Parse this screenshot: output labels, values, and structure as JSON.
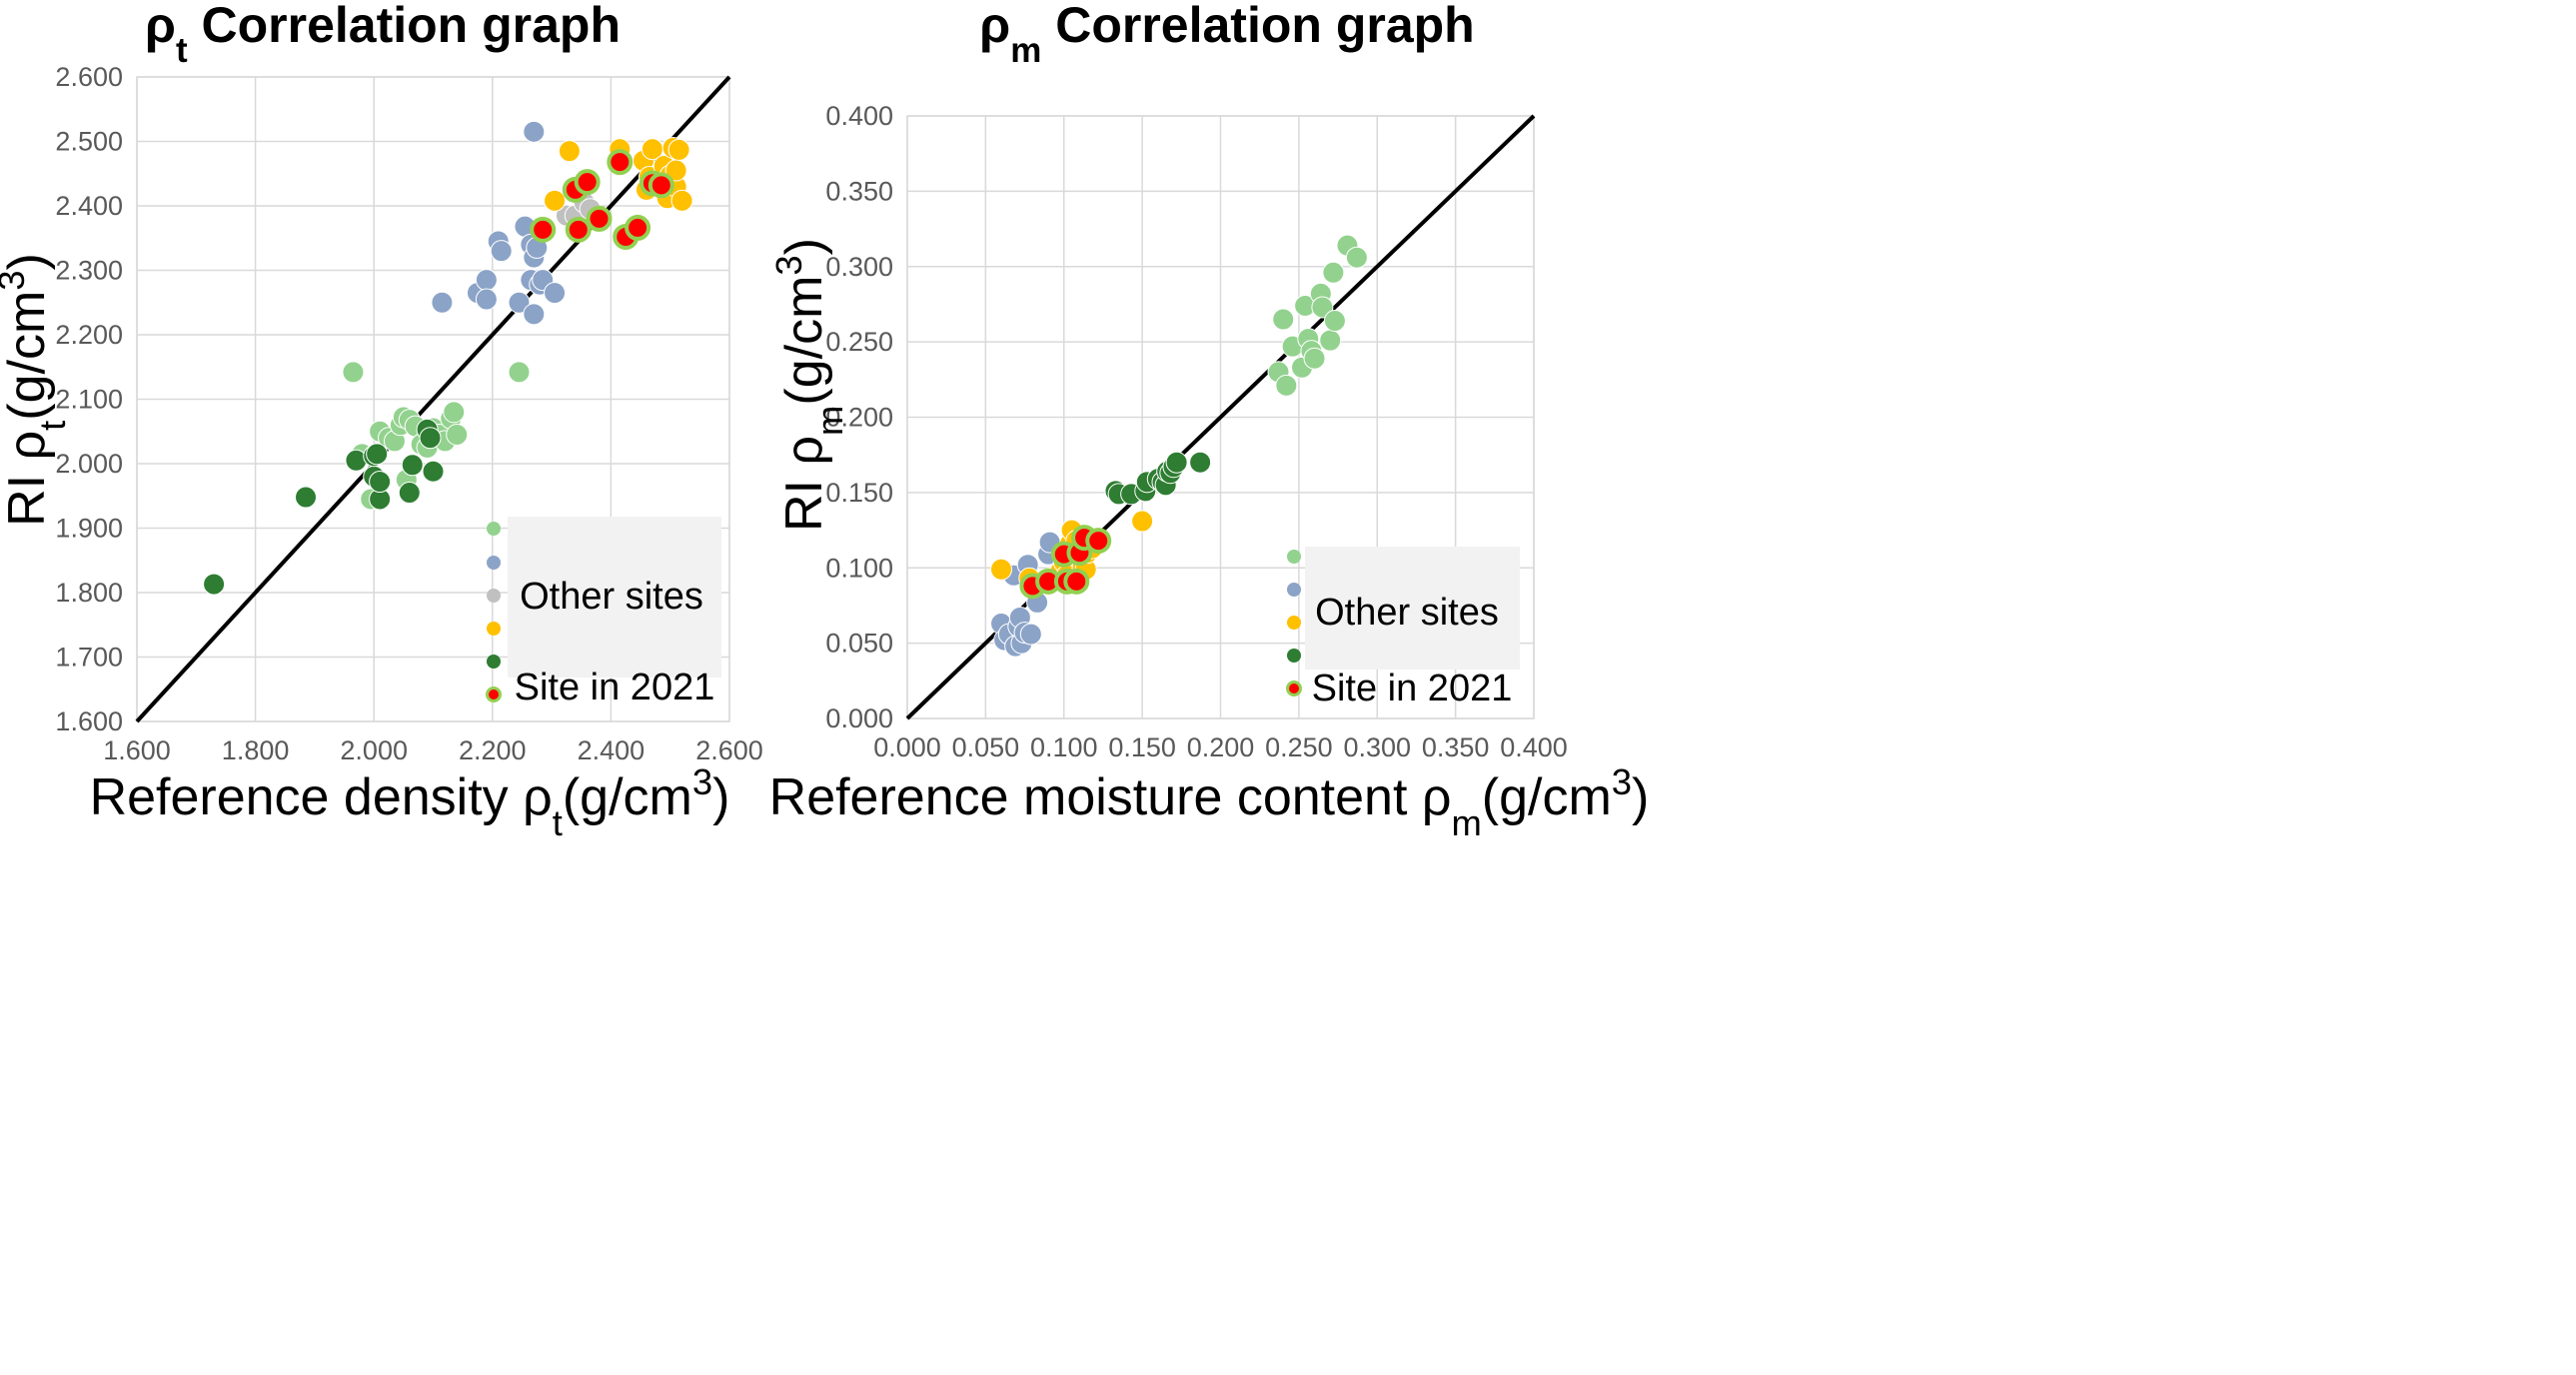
{
  "chart_data": [
    {
      "type": "scatter",
      "title": {
        "main": "ρ",
        "sub": "t",
        "rest": " Correlation graph"
      },
      "xlabel": {
        "main": "Reference density  ρ",
        "sub": "t",
        "rest": "(g/cm",
        "sup": "3",
        "end": ")"
      },
      "ylabel": {
        "main": "RI ρ",
        "sub": "t",
        "rest": "(g/cm",
        "sup": "3",
        "end": ")"
      },
      "xlim": [
        1.6,
        2.6
      ],
      "ylim": [
        1.6,
        2.6
      ],
      "xticks": [
        "1.600",
        "1.800",
        "2.000",
        "2.200",
        "2.400",
        "2.600"
      ],
      "yticks": [
        "1.600",
        "1.700",
        "1.800",
        "1.900",
        "2.000",
        "2.100",
        "2.200",
        "2.300",
        "2.400",
        "2.500",
        "2.600"
      ],
      "reference_line": [
        [
          1.6,
          1.6
        ],
        [
          2.6,
          2.6
        ]
      ],
      "legend": {
        "label_other": "Other sites",
        "label_site": "Site in 2021"
      },
      "series": [
        {
          "name": "light-green",
          "color": "#92d28e",
          "points": [
            [
              1.965,
              2.142
            ],
            [
              1.98,
              2.015
            ],
            [
              2.01,
              2.05
            ],
            [
              2.025,
              2.04
            ],
            [
              2.035,
              2.035
            ],
            [
              2.045,
              2.06
            ],
            [
              2.05,
              2.072
            ],
            [
              2.06,
              2.068
            ],
            [
              2.07,
              2.058
            ],
            [
              2.08,
              2.03
            ],
            [
              2.09,
              2.025
            ],
            [
              2.1,
              2.055
            ],
            [
              2.11,
              2.045
            ],
            [
              2.12,
              2.035
            ],
            [
              2.13,
              2.07
            ],
            [
              2.135,
              2.08
            ],
            [
              2.14,
              2.045
            ],
            [
              2.055,
              1.975
            ],
            [
              1.995,
              1.945
            ],
            [
              2.245,
              2.142
            ]
          ]
        },
        {
          "name": "blue-gray",
          "color": "#8ba3c7",
          "points": [
            [
              2.115,
              2.25
            ],
            [
              2.175,
              2.265
            ],
            [
              2.19,
              2.285
            ],
            [
              2.19,
              2.255
            ],
            [
              2.21,
              2.345
            ],
            [
              2.215,
              2.33
            ],
            [
              2.245,
              2.25
            ],
            [
              2.255,
              2.368
            ],
            [
              2.265,
              2.285
            ],
            [
              2.265,
              2.34
            ],
            [
              2.27,
              2.32
            ],
            [
              2.27,
              2.515
            ],
            [
              2.275,
              2.335
            ],
            [
              2.27,
              2.232
            ],
            [
              2.28,
              2.278
            ],
            [
              2.285,
              2.285
            ],
            [
              2.305,
              2.265
            ]
          ]
        },
        {
          "name": "light-gray",
          "color": "#c0c0c0",
          "points": [
            [
              2.325,
              2.385
            ],
            [
              2.34,
              2.385
            ],
            [
              2.355,
              2.405
            ],
            [
              2.365,
              2.395
            ]
          ]
        },
        {
          "name": "yellow",
          "color": "#ffc000",
          "points": [
            [
              2.305,
              2.408
            ],
            [
              2.33,
              2.485
            ],
            [
              2.415,
              2.488
            ],
            [
              2.455,
              2.47
            ],
            [
              2.46,
              2.425
            ],
            [
              2.465,
              2.445
            ],
            [
              2.47,
              2.488
            ],
            [
              2.48,
              2.44
            ],
            [
              2.49,
              2.462
            ],
            [
              2.495,
              2.412
            ],
            [
              2.5,
              2.447
            ],
            [
              2.505,
              2.49
            ],
            [
              2.51,
              2.43
            ],
            [
              2.51,
              2.455
            ],
            [
              2.515,
              2.487
            ],
            [
              2.52,
              2.408
            ]
          ]
        },
        {
          "name": "dark-green",
          "color": "#2e7d32",
          "points": [
            [
              1.73,
              1.813
            ],
            [
              1.885,
              1.948
            ],
            [
              1.97,
              2.005
            ],
            [
              2.0,
              1.98
            ],
            [
              2.0,
              2.012
            ],
            [
              2.005,
              2.015
            ],
            [
              2.01,
              1.945
            ],
            [
              2.01,
              1.972
            ],
            [
              2.06,
              1.955
            ],
            [
              2.065,
              1.998
            ],
            [
              2.09,
              2.053
            ],
            [
              2.095,
              2.04
            ],
            [
              2.1,
              1.988
            ]
          ]
        },
        {
          "name": "site-2021",
          "color": "#ff0000",
          "ring": "#92d050",
          "points": [
            [
              2.285,
              2.363
            ],
            [
              2.34,
              2.425
            ],
            [
              2.345,
              2.363
            ],
            [
              2.36,
              2.437
            ],
            [
              2.38,
              2.38
            ],
            [
              2.415,
              2.468
            ],
            [
              2.425,
              2.352
            ],
            [
              2.445,
              2.366
            ],
            [
              2.47,
              2.435
            ],
            [
              2.485,
              2.432
            ]
          ]
        }
      ]
    },
    {
      "type": "scatter",
      "title": {
        "main": "ρ",
        "sub": "m",
        "rest": " Correlation graph"
      },
      "xlabel": {
        "main": "Reference moisture content  ρ",
        "sub": "m",
        "rest": "(g/cm",
        "sup": "3",
        "end": ")"
      },
      "ylabel": {
        "main": "RI ρ",
        "sub": "m",
        "rest": "(g/cm",
        "sup": "3",
        "end": ")"
      },
      "xlim": [
        0.0,
        0.4
      ],
      "ylim": [
        0.0,
        0.4
      ],
      "xticks": [
        "0.000",
        "0.050",
        "0.100",
        "0.150",
        "0.200",
        "0.250",
        "0.300",
        "0.350",
        "0.400"
      ],
      "yticks": [
        "0.000",
        "0.050",
        "0.100",
        "0.150",
        "0.200",
        "0.250",
        "0.300",
        "0.350",
        "0.400"
      ],
      "reference_line": [
        [
          0.0,
          0.0
        ],
        [
          0.4,
          0.4
        ]
      ],
      "legend": {
        "label_other": "Other sites",
        "label_site": "Site in 2021"
      },
      "series": [
        {
          "name": "light-green",
          "color": "#92d28e",
          "points": [
            [
              0.237,
              0.23
            ],
            [
              0.24,
              0.265
            ],
            [
              0.242,
              0.221
            ],
            [
              0.246,
              0.247
            ],
            [
              0.252,
              0.233
            ],
            [
              0.254,
              0.274
            ],
            [
              0.256,
              0.252
            ],
            [
              0.258,
              0.244
            ],
            [
              0.26,
              0.239
            ],
            [
              0.264,
              0.282
            ],
            [
              0.265,
              0.273
            ],
            [
              0.27,
              0.251
            ],
            [
              0.272,
              0.296
            ],
            [
              0.273,
              0.264
            ],
            [
              0.281,
              0.314
            ],
            [
              0.287,
              0.306
            ]
          ]
        },
        {
          "name": "blue-gray",
          "color": "#8ba3c7",
          "points": [
            [
              0.06,
              0.063
            ],
            [
              0.062,
              0.052
            ],
            [
              0.065,
              0.056
            ],
            [
              0.068,
              0.095
            ],
            [
              0.069,
              0.048
            ],
            [
              0.071,
              0.061
            ],
            [
              0.072,
              0.067
            ],
            [
              0.073,
              0.05
            ],
            [
              0.075,
              0.057
            ],
            [
              0.077,
              0.102
            ],
            [
              0.079,
              0.056
            ],
            [
              0.083,
              0.077
            ],
            [
              0.09,
              0.109
            ],
            [
              0.091,
              0.117
            ],
            [
              0.097,
              0.093
            ],
            [
              0.1,
              0.09
            ],
            [
              0.105,
              0.093
            ]
          ]
        },
        {
          "name": "yellow",
          "color": "#ffc000",
          "points": [
            [
              0.06,
              0.099
            ],
            [
              0.078,
              0.093
            ],
            [
              0.082,
              0.089
            ],
            [
              0.088,
              0.09
            ],
            [
              0.092,
              0.093
            ],
            [
              0.098,
              0.098
            ],
            [
              0.1,
              0.104
            ],
            [
              0.102,
              0.095
            ],
            [
              0.104,
              0.116
            ],
            [
              0.105,
              0.125
            ],
            [
              0.106,
              0.09
            ],
            [
              0.108,
              0.118
            ],
            [
              0.11,
              0.107
            ],
            [
              0.112,
              0.1
            ],
            [
              0.114,
              0.099
            ],
            [
              0.115,
              0.11
            ],
            [
              0.118,
              0.113
            ],
            [
              0.15,
              0.131
            ]
          ]
        },
        {
          "name": "dark-green",
          "color": "#2e7d32",
          "points": [
            [
              0.133,
              0.151
            ],
            [
              0.135,
              0.149
            ],
            [
              0.143,
              0.149
            ],
            [
              0.152,
              0.151
            ],
            [
              0.153,
              0.157
            ],
            [
              0.16,
              0.159
            ],
            [
              0.163,
              0.157
            ],
            [
              0.165,
              0.155
            ],
            [
              0.166,
              0.164
            ],
            [
              0.168,
              0.163
            ],
            [
              0.17,
              0.167
            ],
            [
              0.172,
              0.17
            ],
            [
              0.187,
              0.17
            ]
          ]
        },
        {
          "name": "site-2021",
          "color": "#ff0000",
          "ring": "#92d050",
          "points": [
            [
              0.08,
              0.088
            ],
            [
              0.09,
              0.091
            ],
            [
              0.1,
              0.109
            ],
            [
              0.102,
              0.091
            ],
            [
              0.108,
              0.091
            ],
            [
              0.11,
              0.11
            ],
            [
              0.113,
              0.12
            ],
            [
              0.122,
              0.118
            ]
          ]
        }
      ]
    }
  ]
}
